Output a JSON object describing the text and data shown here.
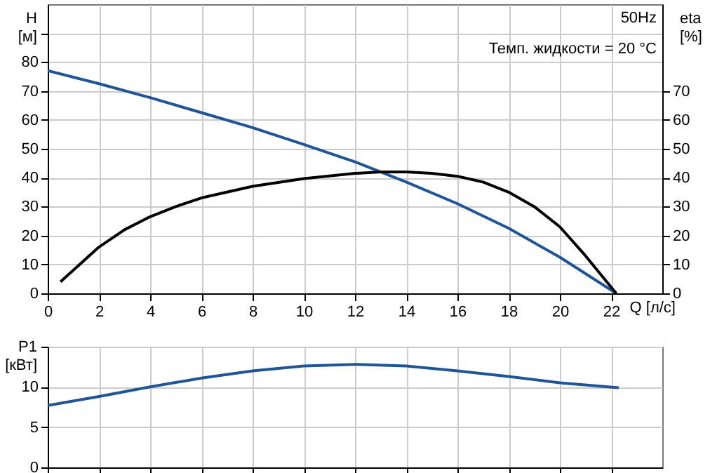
{
  "chart_data": [
    {
      "type": "line",
      "xlabel": "Q [л/с]",
      "ylabel": "H\n[м]",
      "y2label": "eta\n[%]",
      "annotations": [
        "50Hz",
        "Темп. жидкости = 20 °C"
      ],
      "xlim": [
        0,
        24
      ],
      "xticks": [
        0,
        2,
        4,
        6,
        8,
        10,
        12,
        14,
        16,
        18,
        20,
        22
      ],
      "ylim": [
        0,
        100
      ],
      "yticks": [
        0,
        10,
        20,
        30,
        40,
        50,
        60,
        70,
        80,
        {
          "value": 90,
          "label": null
        }
      ],
      "y2lim": [
        0,
        100
      ],
      "y2ticks": [
        0,
        10,
        20,
        30,
        40,
        50,
        60,
        70
      ],
      "grid": true,
      "marker": "none",
      "line_style": "solid",
      "series": [
        {
          "color": "#1f5596",
          "x": [
            0,
            2,
            4,
            6,
            8,
            10,
            12,
            14,
            16,
            18,
            20,
            22.2
          ],
          "values": [
            77,
            72.5,
            67.7,
            62.5,
            57.3,
            51.5,
            45.5,
            38.5,
            31,
            22.5,
            12.5,
            0
          ]
        },
        {
          "color": "#000000",
          "axis": "y2",
          "x": [
            0.5,
            1,
            2,
            3,
            4,
            5,
            6,
            8,
            10,
            12,
            13,
            14,
            15,
            16,
            17,
            18,
            19,
            20,
            21,
            22.2
          ],
          "values": [
            4,
            8,
            16,
            22,
            26.5,
            30,
            33,
            37,
            39.7,
            41.5,
            42,
            42,
            41.5,
            40.5,
            38.5,
            35,
            30,
            23,
            13,
            0
          ]
        }
      ]
    },
    {
      "type": "line",
      "ylabel": "P1\n[кВт]",
      "tick_labels": "y",
      "xlim": [
        0,
        24
      ],
      "xticks": [
        0,
        2,
        4,
        6,
        8,
        10,
        12,
        14,
        16,
        18,
        20,
        22
      ],
      "ylim": [
        0,
        15
      ],
      "yticks": [
        0,
        5,
        10,
        {
          "value": 15,
          "label": null
        }
      ],
      "grid": true,
      "marker": "none",
      "line_style": "solid",
      "series": [
        {
          "color": "#1f5596",
          "x": [
            0,
            2,
            4,
            6,
            8,
            10,
            12,
            14,
            16,
            18,
            20,
            22.3
          ],
          "values": [
            7.7,
            8.8,
            10,
            11.1,
            12,
            12.6,
            12.8,
            12.6,
            12,
            11.3,
            10.5,
            9.9
          ]
        }
      ]
    }
  ]
}
